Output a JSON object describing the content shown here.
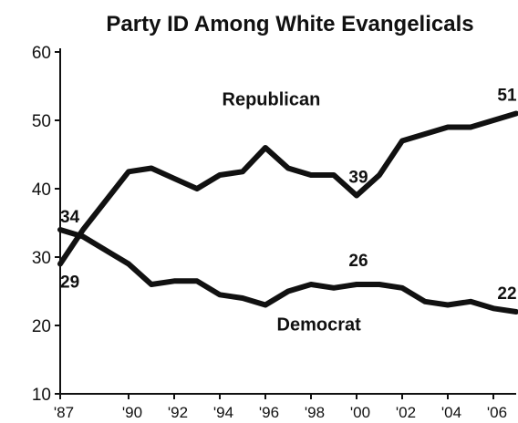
{
  "chart_data": {
    "type": "line",
    "title": "Party ID Among White Evangelicals",
    "x": [
      1987,
      1988,
      1990,
      1991,
      1992,
      1993,
      1994,
      1995,
      1996,
      1997,
      1998,
      1999,
      2000,
      2001,
      2002,
      2003,
      2004,
      2005,
      2006,
      2007
    ],
    "x_tick_labels": [
      "'87",
      "'90",
      "'92",
      "'94",
      "'96",
      "'98",
      "'00",
      "'02",
      "'04",
      "'06"
    ],
    "x_tick_values": [
      1987,
      1990,
      1992,
      1994,
      1996,
      1998,
      2000,
      2002,
      2004,
      2006
    ],
    "xlim": [
      1987,
      2007
    ],
    "ylim": [
      10,
      60
    ],
    "y_ticks": [
      10,
      20,
      30,
      40,
      50,
      60
    ],
    "grid": false,
    "series": [
      {
        "name": "Republican",
        "values": [
          29,
          34,
          42.5,
          43,
          41.5,
          40,
          42,
          42.5,
          46,
          43,
          42,
          42,
          39,
          42,
          47,
          48,
          49,
          49,
          50,
          51
        ]
      },
      {
        "name": "Democrat",
        "values": [
          34,
          33,
          29,
          26,
          26.5,
          26.5,
          24.5,
          24,
          23,
          25,
          26,
          25.5,
          26,
          26,
          25.5,
          23.5,
          23,
          23.5,
          22.5,
          22
        ]
      }
    ],
    "data_labels": [
      {
        "series": "Democrat",
        "x": 1987,
        "text": "34"
      },
      {
        "series": "Republican",
        "x": 1987,
        "text": "29"
      },
      {
        "series": "Republican",
        "x": 2000,
        "text": "39"
      },
      {
        "series": "Democrat",
        "x": 2000,
        "text": "26"
      },
      {
        "series": "Republican",
        "x": 2007,
        "text": "51"
      },
      {
        "series": "Democrat",
        "x": 2007,
        "text": "22"
      }
    ]
  }
}
